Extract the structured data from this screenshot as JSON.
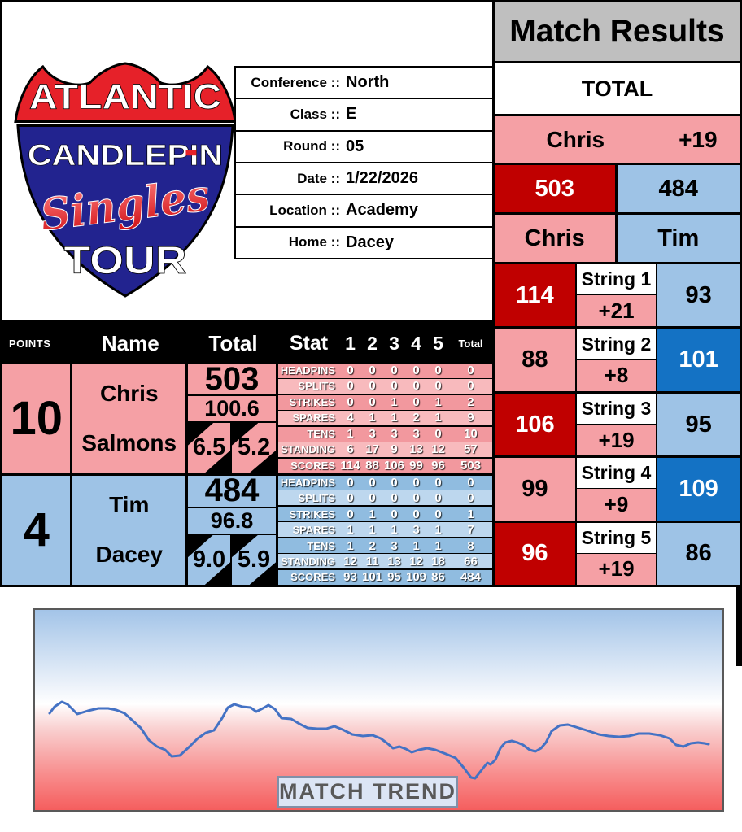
{
  "header": {
    "title": "Match Results"
  },
  "logo": {
    "line1": "ATLANTIC",
    "line2": "CANDLEPIN",
    "line3": "Singles",
    "line4": "TOUR"
  },
  "info": {
    "rows": [
      {
        "label": "Conference ::",
        "value": "North"
      },
      {
        "label": "Class ::",
        "value": "E"
      },
      {
        "label": "Round ::",
        "value": "05"
      },
      {
        "label": "Date ::",
        "value": "1/22/2026"
      },
      {
        "label": "Location ::",
        "value": "Academy"
      },
      {
        "label": "Home ::",
        "value": "Dacey"
      }
    ]
  },
  "total_panel": {
    "total_label": "TOTAL",
    "leader_name": "Chris",
    "leader_margin": "+19",
    "p1_total": "503",
    "p2_total": "484",
    "p1_name": "Chris",
    "p2_name": "Tim"
  },
  "strings": [
    {
      "label": "String 1",
      "p1": "114",
      "margin": "+21",
      "p2": "93",
      "p1_win": true,
      "p2_win": false
    },
    {
      "label": "String 2",
      "p1": "88",
      "margin": "+8",
      "p2": "101",
      "p1_win": false,
      "p2_win": true
    },
    {
      "label": "String 3",
      "p1": "106",
      "margin": "+19",
      "p2": "95",
      "p1_win": true,
      "p2_win": false
    },
    {
      "label": "String 4",
      "p1": "99",
      "margin": "+9",
      "p2": "109",
      "p1_win": false,
      "p2_win": true
    },
    {
      "label": "String 5",
      "p1": "96",
      "margin": "+19",
      "p2": "86",
      "p1_win": true,
      "p2_win": false
    }
  ],
  "players_table": {
    "headers": {
      "points": "POINTS",
      "name": "Name",
      "total": "Total",
      "stat": "Stat",
      "games": [
        "1",
        "2",
        "3",
        "4",
        "5"
      ],
      "total_small": "Total"
    },
    "players": [
      {
        "points": "10",
        "first_name": "Chris",
        "last_name": "Salmons",
        "total": "503",
        "average": "100.6",
        "mark_left": "6.5",
        "mark_right": "5.2",
        "theme": "pink",
        "stats": [
          {
            "label": "HEADPINS",
            "values": [
              "0",
              "0",
              "0",
              "0",
              "0"
            ],
            "total": "0"
          },
          {
            "label": "SPLITS",
            "values": [
              "0",
              "0",
              "0",
              "0",
              "0"
            ],
            "total": "0"
          },
          {
            "label": "STRIKES",
            "values": [
              "0",
              "0",
              "1",
              "0",
              "1"
            ],
            "total": "2"
          },
          {
            "label": "SPARES",
            "values": [
              "4",
              "1",
              "1",
              "2",
              "1"
            ],
            "total": "9"
          },
          {
            "label": "TENS",
            "values": [
              "1",
              "3",
              "3",
              "3",
              "0"
            ],
            "total": "10"
          },
          {
            "label": "STANDING",
            "values": [
              "6",
              "17",
              "9",
              "13",
              "12"
            ],
            "total": "57"
          },
          {
            "label": "SCORES",
            "values": [
              "114",
              "88",
              "106",
              "99",
              "96"
            ],
            "total": "503"
          }
        ]
      },
      {
        "points": "4",
        "first_name": "Tim",
        "last_name": "Dacey",
        "total": "484",
        "average": "96.8",
        "mark_left": "9.0",
        "mark_right": "5.9",
        "theme": "blue",
        "stats": [
          {
            "label": "HEADPINS",
            "values": [
              "0",
              "0",
              "0",
              "0",
              "0"
            ],
            "total": "0"
          },
          {
            "label": "SPLITS",
            "values": [
              "0",
              "0",
              "0",
              "0",
              "0"
            ],
            "total": "0"
          },
          {
            "label": "STRIKES",
            "values": [
              "0",
              "1",
              "0",
              "0",
              "0"
            ],
            "total": "1"
          },
          {
            "label": "SPARES",
            "values": [
              "1",
              "1",
              "1",
              "3",
              "1"
            ],
            "total": "7"
          },
          {
            "label": "TENS",
            "values": [
              "1",
              "2",
              "3",
              "1",
              "1"
            ],
            "total": "8"
          },
          {
            "label": "STANDING",
            "values": [
              "12",
              "11",
              "13",
              "12",
              "18"
            ],
            "total": "66"
          },
          {
            "label": "SCORES",
            "values": [
              "93",
              "101",
              "95",
              "109",
              "86"
            ],
            "total": "484"
          }
        ]
      }
    ]
  },
  "match_trend": {
    "label": "MATCH TREND",
    "points": [
      [
        18,
        127
      ],
      [
        24,
        119
      ],
      [
        33,
        113
      ],
      [
        40,
        116
      ],
      [
        52,
        128
      ],
      [
        65,
        124
      ],
      [
        78,
        121
      ],
      [
        90,
        121
      ],
      [
        100,
        123
      ],
      [
        110,
        127
      ],
      [
        120,
        136
      ],
      [
        130,
        145
      ],
      [
        140,
        160
      ],
      [
        150,
        168
      ],
      [
        160,
        172
      ],
      [
        168,
        180
      ],
      [
        178,
        179
      ],
      [
        190,
        168
      ],
      [
        200,
        158
      ],
      [
        210,
        151
      ],
      [
        220,
        148
      ],
      [
        230,
        133
      ],
      [
        237,
        120
      ],
      [
        245,
        116
      ],
      [
        255,
        119
      ],
      [
        265,
        120
      ],
      [
        272,
        125
      ],
      [
        280,
        121
      ],
      [
        287,
        117
      ],
      [
        295,
        122
      ],
      [
        303,
        133
      ],
      [
        315,
        134
      ],
      [
        325,
        140
      ],
      [
        335,
        145
      ],
      [
        347,
        146
      ],
      [
        358,
        146
      ],
      [
        368,
        143
      ],
      [
        378,
        147
      ],
      [
        390,
        153
      ],
      [
        403,
        155
      ],
      [
        415,
        154
      ],
      [
        425,
        158
      ],
      [
        433,
        164
      ],
      [
        440,
        170
      ],
      [
        448,
        168
      ],
      [
        456,
        171
      ],
      [
        463,
        175
      ],
      [
        472,
        172
      ],
      [
        482,
        170
      ],
      [
        492,
        172
      ],
      [
        505,
        177
      ],
      [
        517,
        182
      ],
      [
        527,
        194
      ],
      [
        536,
        206
      ],
      [
        541,
        207
      ],
      [
        548,
        198
      ],
      [
        556,
        188
      ],
      [
        560,
        190
      ],
      [
        566,
        184
      ],
      [
        572,
        170
      ],
      [
        578,
        163
      ],
      [
        586,
        161
      ],
      [
        593,
        163
      ],
      [
        600,
        166
      ],
      [
        608,
        172
      ],
      [
        615,
        174
      ],
      [
        622,
        170
      ],
      [
        628,
        163
      ],
      [
        635,
        149
      ],
      [
        645,
        142
      ],
      [
        655,
        141
      ],
      [
        665,
        144
      ],
      [
        678,
        148
      ],
      [
        693,
        153
      ],
      [
        705,
        155
      ],
      [
        718,
        156
      ],
      [
        730,
        155
      ],
      [
        742,
        152
      ],
      [
        755,
        152
      ],
      [
        768,
        154
      ],
      [
        780,
        158
      ],
      [
        788,
        166
      ],
      [
        797,
        168
      ],
      [
        806,
        164
      ],
      [
        815,
        163
      ],
      [
        823,
        164
      ],
      [
        828,
        165
      ]
    ]
  },
  "colors": {
    "pink": "#F5A0A5",
    "dark_red": "#C00000",
    "light_blue": "#9EC3E6",
    "dark_blue": "#1472C4",
    "header_gray": "#BFBFBF",
    "stat_pink_dark": "#F2989E",
    "stat_pink_light": "#F8BABD",
    "stat_blue_dark": "#90BCE0",
    "stat_blue_light": "#BDD7EE",
    "logo_navy": "#22238F",
    "logo_red": "#E62129",
    "trend_line": "#4472C4",
    "trend_label_bg": "#DCE5F5",
    "trend_label_text": "#595959"
  }
}
